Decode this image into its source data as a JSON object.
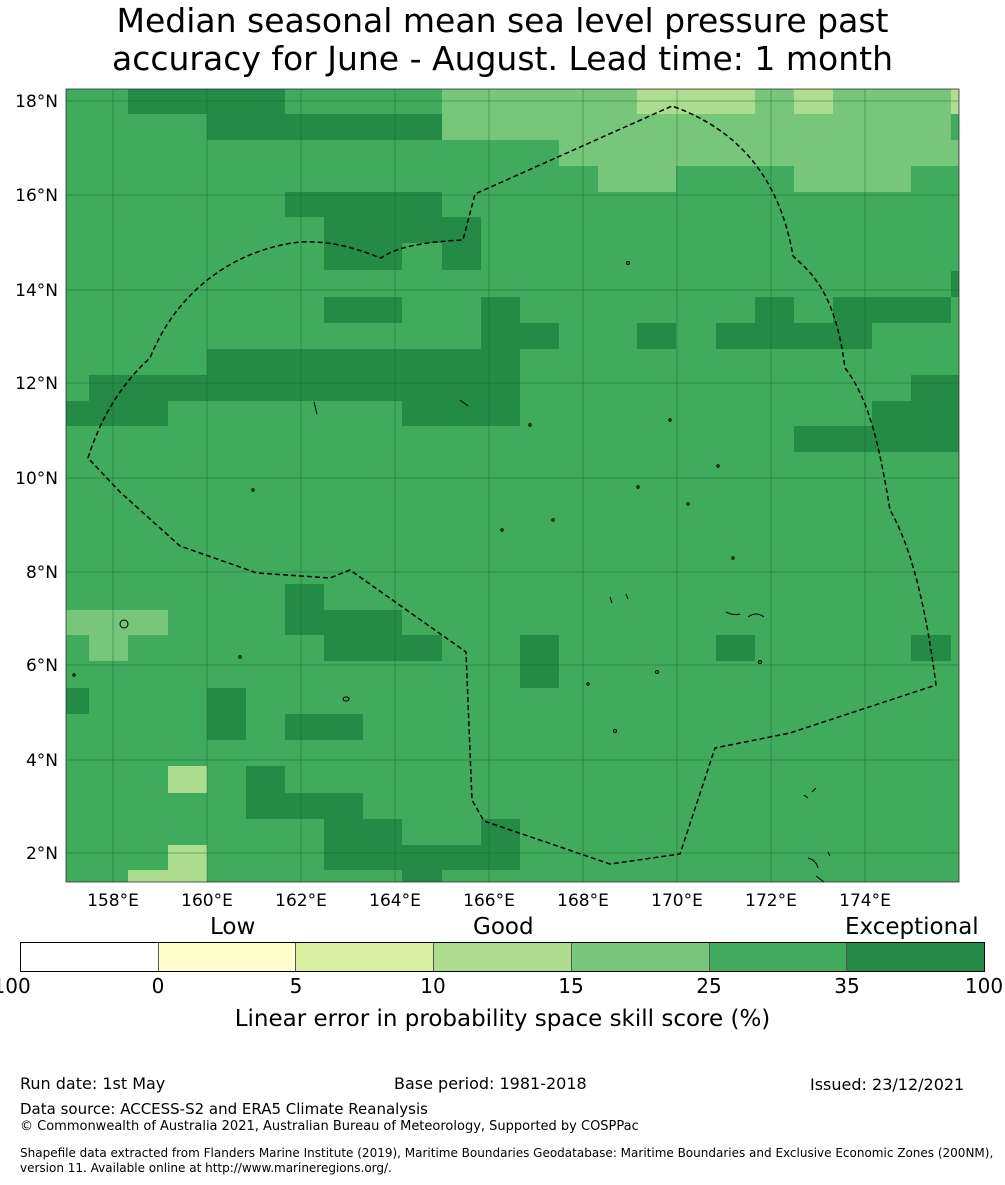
{
  "title": {
    "line1": "Median seasonal mean sea level pressure past",
    "line2": "accuracy for June - August. Lead time: 1 month"
  },
  "map": {
    "lon_labels": [
      "158°E",
      "160°E",
      "162°E",
      "164°E",
      "166°E",
      "168°E",
      "170°E",
      "172°E",
      "174°E"
    ],
    "lat_labels": [
      "18°N",
      "16°N",
      "14°N",
      "12°N",
      "10°N",
      "8°N",
      "6°N",
      "4°N",
      "2°N"
    ],
    "region_outline": "EEZ boundary (dashed)",
    "colors": {
      "mid_green": "#41ab5d",
      "dark_green": "#238b45",
      "light_green": "#78c679",
      "pale_green": "#addd8e"
    }
  },
  "colorbar": {
    "categories": {
      "low": "Low",
      "good": "Good",
      "exceptional": "Exceptional"
    },
    "ticks": [
      "-100",
      "0",
      "5",
      "10",
      "15",
      "25",
      "35",
      "100"
    ],
    "colors": [
      "#ffffff",
      "#ffffcc",
      "#d9f0a3",
      "#addd8e",
      "#78c679",
      "#41ab5d",
      "#238b45"
    ],
    "label": "Linear error in probability space skill score (%)"
  },
  "footer": {
    "run_date": "Run date: 1st May",
    "base_period": "Base period: 1981-2018",
    "issued": "Issued: 23/12/2021",
    "data_source": "Data source: ACCESS-S2 and ERA5 Climate Reanalysis",
    "copyright": "© Commonwealth of Australia 2021, Australian Bureau of Meteorology, Supported by COSPPac",
    "shapefile": "Shapefile data extracted from Flanders Marine Institute (2019), Maritime Boundaries Geodatabase: Maritime Boundaries and Exclusive Economic Zones (200NM), version 11. Available online at http://www.marineregions.org/."
  }
}
